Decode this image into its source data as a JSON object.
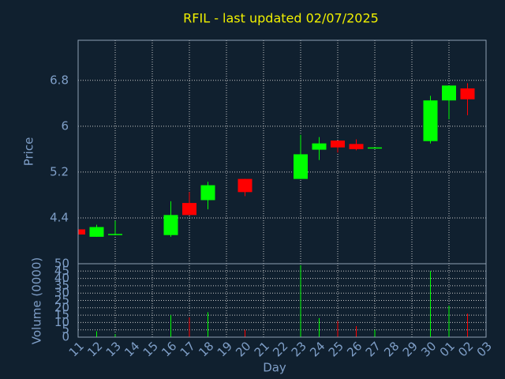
{
  "chart_data": [
    {
      "type": "candlestick",
      "title": "RFIL - last updated 02/07/2025",
      "ylabel": "Price",
      "x": [
        "11",
        "12",
        "13",
        "16",
        "17",
        "18",
        "20",
        "23",
        "24",
        "25",
        "26",
        "27",
        "30",
        "01",
        "02"
      ],
      "open": [
        4.2,
        4.07,
        4.11,
        4.1,
        4.66,
        4.71,
        5.08,
        5.08,
        5.59,
        5.75,
        5.69,
        5.62,
        5.74,
        6.45,
        6.66
      ],
      "high": [
        4.2,
        4.28,
        4.35,
        4.69,
        4.85,
        5.03,
        5.08,
        5.85,
        5.81,
        5.75,
        5.77,
        5.63,
        6.53,
        6.71,
        6.75
      ],
      "low": [
        4.11,
        4.07,
        4.11,
        4.07,
        4.45,
        4.55,
        4.78,
        5.08,
        5.41,
        5.54,
        5.58,
        5.62,
        5.7,
        6.12,
        6.19
      ],
      "close": [
        4.11,
        4.24,
        4.12,
        4.45,
        4.45,
        4.97,
        4.85,
        5.51,
        5.7,
        5.63,
        5.6,
        5.63,
        6.45,
        6.71,
        6.47
      ],
      "up_color": "#00ff00",
      "down_color": "#ff0000",
      "ylim": [
        3.6,
        7.5
      ],
      "yticks": [
        4.4,
        5.2,
        6,
        6.8
      ],
      "grid": true
    },
    {
      "type": "bar",
      "ylabel": "Volume (0000)",
      "xlabel": "Day",
      "categories": [
        "11",
        "12",
        "13",
        "14",
        "15",
        "16",
        "17",
        "18",
        "19",
        "20",
        "21",
        "22",
        "23",
        "24",
        "25",
        "26",
        "27",
        "28",
        "29",
        "30",
        "01",
        "02",
        "03"
      ],
      "x": [
        "11",
        "12",
        "13",
        "16",
        "17",
        "18",
        "20",
        "23",
        "24",
        "25",
        "26",
        "27",
        "30",
        "01",
        "02"
      ],
      "values": [
        1,
        4,
        2,
        15,
        13.5,
        17,
        5,
        49,
        13,
        11,
        7.5,
        5,
        45,
        21.5,
        16
      ],
      "colors": [
        "#ff0000",
        "#00ff00",
        "#00ff00",
        "#00ff00",
        "#ff0000",
        "#00ff00",
        "#ff0000",
        "#00ff00",
        "#00ff00",
        "#ff0000",
        "#ff0000",
        "#00ff00",
        "#00ff00",
        "#00ff00",
        "#ff0000"
      ],
      "ylim": [
        0,
        50
      ],
      "yticks": [
        0,
        5,
        10,
        15,
        20,
        25,
        30,
        35,
        40,
        45,
        50
      ],
      "grid": true
    }
  ]
}
